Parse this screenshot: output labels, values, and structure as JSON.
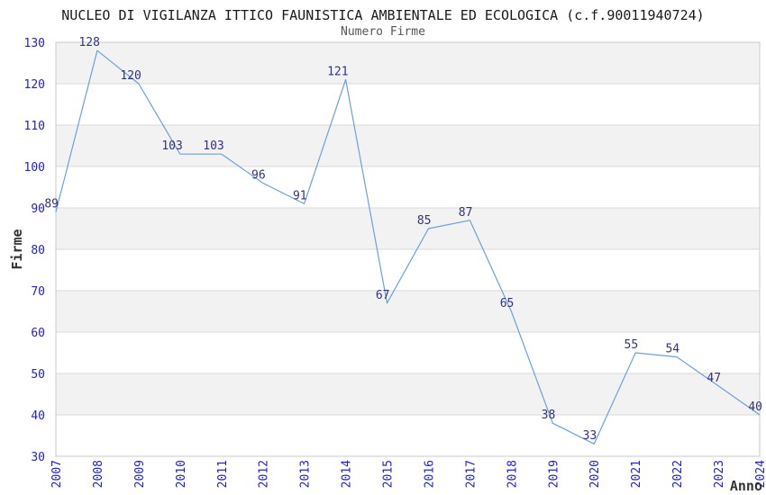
{
  "header": {
    "title": "NUCLEO DI VIGILANZA ITTICO FAUNISTICA AMBIENTALE ED ECOLOGICA (c.f.90011940724)",
    "subtitle": "Numero Firme"
  },
  "chart_data": {
    "type": "line",
    "title": "NUCLEO DI VIGILANZA ITTICO FAUNISTICA AMBIENTALE ED ECOLOGICA (c.f.90011940724)",
    "subtitle": "Numero Firme",
    "xlabel": "Anno",
    "ylabel": "Firme",
    "categories": [
      "2007",
      "2008",
      "2009",
      "2010",
      "2011",
      "2012",
      "2013",
      "2014",
      "2015",
      "2016",
      "2017",
      "2018",
      "2019",
      "2020",
      "2021",
      "2022",
      "2023",
      "2024"
    ],
    "values": [
      89,
      128,
      120,
      103,
      103,
      96,
      91,
      121,
      67,
      85,
      87,
      65,
      38,
      33,
      55,
      54,
      47,
      40
    ],
    "ylim": [
      30,
      130
    ],
    "ytick_step": 10,
    "yticks": [
      30,
      40,
      50,
      60,
      70,
      80,
      90,
      100,
      110,
      120,
      130
    ],
    "grid": true,
    "legend_position": "none",
    "point_labels_visible": true,
    "colors": {
      "line": "#6CA0DB",
      "tick_label": "#2222CC",
      "point_label": "#333380",
      "band": "#F2F2F2",
      "band_alt": "#FFFFFF",
      "gridline": "#D9D9D9",
      "border": "#C9C9C9",
      "title": "#1A1A1A",
      "subtitle": "#555555",
      "axis_title": "#333333"
    }
  }
}
